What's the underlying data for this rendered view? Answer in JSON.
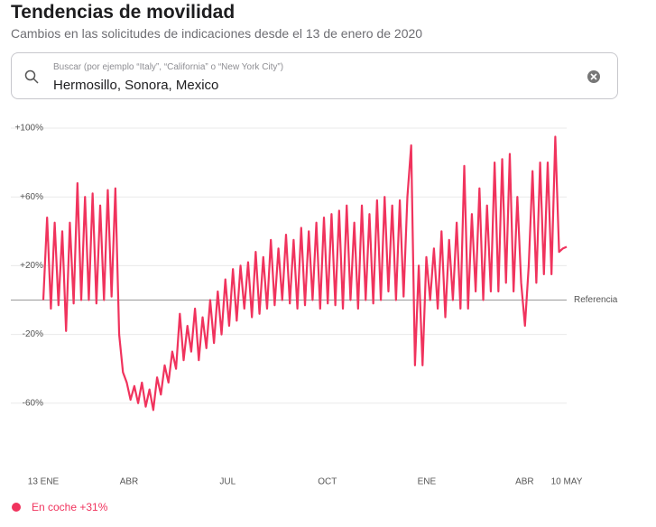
{
  "title": "Tendencias de movilidad",
  "subtitle": "Cambios en las solicitudes de indicaciones desde el 13 de enero de 2020",
  "search": {
    "placeholder": "Buscar (por ejemplo “Italy”, “California” o “New York City”)",
    "value": "Hermosillo, Sonora, Mexico"
  },
  "chart_data": {
    "type": "line",
    "series": [
      {
        "name": "En coche +31%",
        "color": "#f0335d",
        "values": [
          0,
          48,
          -5,
          45,
          -3,
          40,
          -18,
          45,
          -2,
          68,
          0,
          60,
          0,
          62,
          -2,
          55,
          0,
          64,
          2,
          65,
          -20,
          -42,
          -48,
          -58,
          -50,
          -60,
          -48,
          -62,
          -52,
          -64,
          -45,
          -55,
          -38,
          -48,
          -30,
          -40,
          -8,
          -35,
          -15,
          -30,
          -5,
          -35,
          -10,
          -28,
          0,
          -25,
          5,
          -20,
          12,
          -15,
          18,
          -12,
          20,
          -5,
          22,
          -10,
          28,
          -8,
          25,
          -5,
          35,
          -3,
          30,
          0,
          38,
          -2,
          35,
          -5,
          42,
          -3,
          40,
          0,
          45,
          -5,
          48,
          -2,
          50,
          -3,
          52,
          -5,
          55,
          0,
          45,
          -5,
          55,
          0,
          50,
          -2,
          58,
          0,
          60,
          5,
          55,
          0,
          58,
          2,
          60,
          90,
          -38,
          20,
          -38,
          25,
          0,
          30,
          -5,
          40,
          -10,
          35,
          0,
          45,
          -5,
          78,
          -5,
          50,
          5,
          65,
          0,
          55,
          5,
          80,
          5,
          82,
          10,
          85,
          5,
          60,
          10,
          -15,
          20,
          75,
          10,
          80,
          15,
          80,
          15,
          95,
          28,
          30,
          31
        ]
      }
    ],
    "xlim": [
      0,
      138
    ],
    "xticks": [
      {
        "value": 0,
        "label": "13 ENE"
      },
      {
        "value": 22.6,
        "label": "ABR"
      },
      {
        "value": 48.6,
        "label": "JUL"
      },
      {
        "value": 74.9,
        "label": "OCT"
      },
      {
        "value": 101.1,
        "label": "ENE"
      },
      {
        "value": 126.9,
        "label": "ABR"
      },
      {
        "value": 138,
        "label": "10 MAY"
      }
    ],
    "ylim": [
      -100,
      100
    ],
    "yticks": [
      {
        "value": 100,
        "label": "+100%"
      },
      {
        "value": 60,
        "label": "+60%"
      },
      {
        "value": 20,
        "label": "+20%"
      },
      {
        "value": -20,
        "label": "-20%"
      },
      {
        "value": -60,
        "label": "-60%"
      }
    ],
    "reference": {
      "value": 0,
      "label": "Referencia"
    },
    "grid": true
  }
}
